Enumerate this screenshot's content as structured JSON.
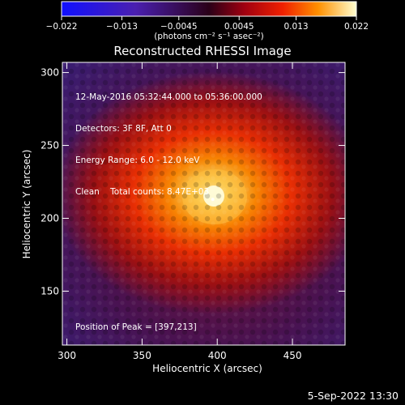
{
  "colorbar": {
    "ticks": [
      -0.022,
      -0.013,
      -0.0045,
      0.0045,
      0.013,
      0.022
    ],
    "tick_labels": [
      "−0.022",
      "−0.013",
      "−0.0045",
      "0.0045",
      "0.013",
      "0.022"
    ],
    "unit_label": "(photons cm⁻² s⁻¹ asec⁻²)"
  },
  "chart_data": {
    "type": "heatmap",
    "title": "Reconstructed RHESSI Image",
    "xlabel": "Heliocentric X (arcsec)",
    "ylabel": "Heliocentric Y (arcsec)",
    "xlim": [
      297,
      485
    ],
    "ylim": [
      113,
      307
    ],
    "xticks": [
      300,
      350,
      400,
      450
    ],
    "yticks": [
      150,
      200,
      250,
      300
    ],
    "clim": [
      -0.022,
      0.022
    ],
    "colormap": "red-temperature",
    "peak": {
      "x": 397,
      "y": 213
    },
    "annotations": {
      "time_range": "12-May-2016 05:32:44.000 to 05:36:00.000",
      "detectors": "Detectors: 3F 8F, Att 0",
      "energy": "Energy Range: 6.0 - 12.0 keV",
      "clean": "Clean    Total counts: 8.47E+03",
      "peak_position": "Position of Peak = [397,213]"
    }
  },
  "footer": {
    "timestamp": "5-Sep-2022 13:30"
  }
}
